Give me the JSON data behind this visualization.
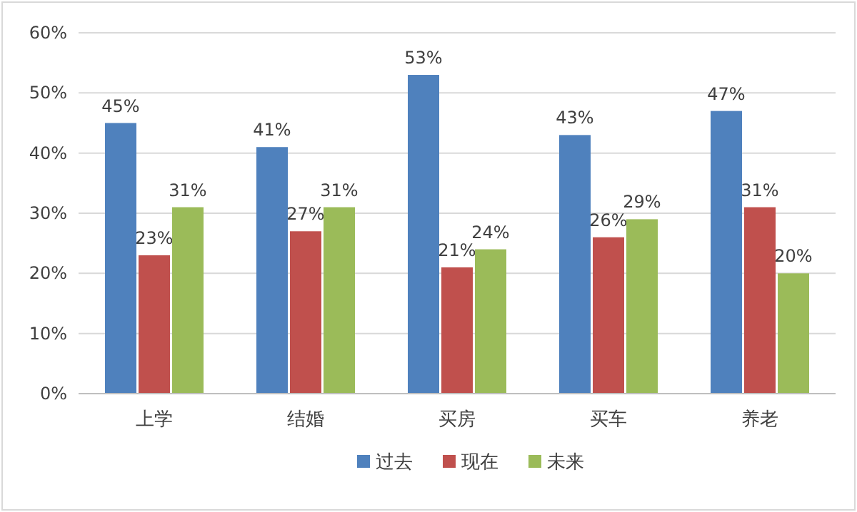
{
  "chart_data": {
    "type": "bar",
    "categories": [
      "上学",
      "结婚",
      "买房",
      "买车",
      "养老"
    ],
    "series": [
      {
        "name": "过去",
        "color": "#4f81bd",
        "values": [
          45,
          41,
          53,
          43,
          47
        ],
        "value_labels": [
          "45%",
          "41%",
          "53%",
          "43%",
          "47%"
        ]
      },
      {
        "name": "现在",
        "color": "#c0504d",
        "values": [
          23,
          27,
          21,
          26,
          31
        ],
        "value_labels": [
          "23%",
          "27%",
          "21%",
          "26%",
          "31%"
        ]
      },
      {
        "name": "未来",
        "color": "#9bbb59",
        "values": [
          31,
          31,
          24,
          29,
          20
        ],
        "value_labels": [
          "31%",
          "31%",
          "24%",
          "29%",
          "20%"
        ]
      }
    ],
    "ylim": [
      0,
      60
    ],
    "yticks": [
      {
        "value": 0,
        "label": "0%"
      },
      {
        "value": 10,
        "label": "10%"
      },
      {
        "value": 20,
        "label": "20%"
      },
      {
        "value": 30,
        "label": "30%"
      },
      {
        "value": 40,
        "label": "40%"
      },
      {
        "value": 50,
        "label": "50%"
      },
      {
        "value": 60,
        "label": "60%"
      }
    ],
    "grid": "y",
    "legend": "bottom"
  }
}
